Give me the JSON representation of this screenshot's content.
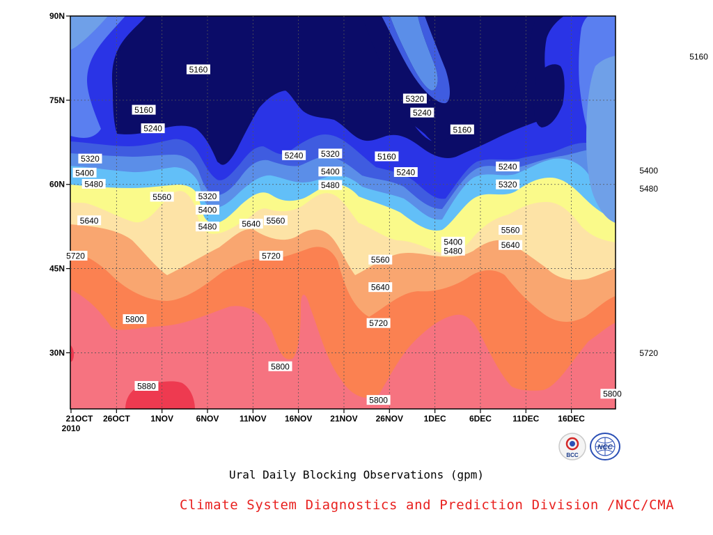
{
  "chart_data": {
    "type": "filled-contour",
    "title": "Ural Daily Blocking Observations (gpm)",
    "x_ticks": [
      "21OCT\n2010",
      "26OCT",
      "1NOV",
      "6NOV",
      "11NOV",
      "16NOV",
      "21NOV",
      "26NOV",
      "1DEC",
      "6DEC",
      "11DEC",
      "16DEC"
    ],
    "y_ticks": [
      "90N",
      "75N",
      "60N",
      "45N",
      "30N"
    ],
    "ylim": [
      20,
      90
    ],
    "grid": true,
    "contour_levels": [
      5160,
      5240,
      5320,
      5400,
      5480,
      5560,
      5640,
      5720,
      5800,
      5880
    ],
    "fill_colors": [
      "#6fa0e8",
      "#5a7ff0",
      "#2a34e6",
      "#0b0c68",
      "#3f5ce0",
      "#5b8ee8",
      "#62bff8",
      "#fafa8a",
      "#fde3a6",
      "#f9a670",
      "#fb8151",
      "#f67380",
      "#ee3a50"
    ],
    "band_labels": [
      "5160",
      "5240",
      "5320",
      "5400",
      "5480",
      "5560",
      "5640",
      "5720",
      "5800",
      "5880"
    ],
    "labels": [
      {
        "text": "5160",
        "x": 14,
        "y": 80.5
      },
      {
        "text": "5160",
        "x": 8,
        "y": 73.3
      },
      {
        "text": "5160",
        "x": 69,
        "y": 82.8
      },
      {
        "text": "5160",
        "x": 34.7,
        "y": 65
      },
      {
        "text": "5160",
        "x": 43,
        "y": 69.8
      },
      {
        "text": "5240",
        "x": 9,
        "y": 70
      },
      {
        "text": "5240",
        "x": 24.5,
        "y": 65.2
      },
      {
        "text": "5240",
        "x": 38.6,
        "y": 72.8
      },
      {
        "text": "5240",
        "x": 36.8,
        "y": 62.2
      },
      {
        "text": "5240",
        "x": 48,
        "y": 63.2
      },
      {
        "text": "5320",
        "x": 2.1,
        "y": 64.6
      },
      {
        "text": "5320",
        "x": 28.5,
        "y": 65.5
      },
      {
        "text": "5320",
        "x": 15,
        "y": 57.9
      },
      {
        "text": "5320",
        "x": 37.8,
        "y": 75.3
      },
      {
        "text": "5320",
        "x": 48,
        "y": 60
      },
      {
        "text": "5400",
        "x": 1.5,
        "y": 62.1
      },
      {
        "text": "5400",
        "x": 28.5,
        "y": 62.3
      },
      {
        "text": "5400",
        "x": 15,
        "y": 55.5
      },
      {
        "text": "5400",
        "x": 42,
        "y": 49.8
      },
      {
        "text": "5400",
        "x": 63.5,
        "y": 62.5
      },
      {
        "text": "5480",
        "x": 2.5,
        "y": 60.1
      },
      {
        "text": "5480",
        "x": 28.5,
        "y": 59.9
      },
      {
        "text": "5480",
        "x": 15,
        "y": 52.5
      },
      {
        "text": "5480",
        "x": 42,
        "y": 48.2
      },
      {
        "text": "5480",
        "x": 63.5,
        "y": 59.3
      },
      {
        "text": "5560",
        "x": 10,
        "y": 57.8
      },
      {
        "text": "5560",
        "x": 22.5,
        "y": 53.6
      },
      {
        "text": "5560",
        "x": 34,
        "y": 46.6
      },
      {
        "text": "5560",
        "x": 48.3,
        "y": 51.9
      },
      {
        "text": "5640",
        "x": 2,
        "y": 53.6
      },
      {
        "text": "5640",
        "x": 19.8,
        "y": 53
      },
      {
        "text": "5640",
        "x": 34,
        "y": 41.7
      },
      {
        "text": "5640",
        "x": 48.3,
        "y": 49.2
      },
      {
        "text": "5720",
        "x": 0.5,
        "y": 47.3
      },
      {
        "text": "5720",
        "x": 22,
        "y": 47.3
      },
      {
        "text": "5720",
        "x": 33.8,
        "y": 35.3
      },
      {
        "text": "5720",
        "x": 63.5,
        "y": 30
      },
      {
        "text": "5800",
        "x": 7,
        "y": 36
      },
      {
        "text": "5800",
        "x": 23,
        "y": 27.6
      },
      {
        "text": "5800",
        "x": 33.8,
        "y": 21.6
      },
      {
        "text": "5800",
        "x": 59.5,
        "y": 22.7
      },
      {
        "text": "5880",
        "x": 8.3,
        "y": 24.1
      }
    ]
  },
  "caption_title": "Ural Daily Blocking Observations (gpm)",
  "caption_org": "Climate System Diagnostics and Prediction Division /NCC/CMA",
  "logos": [
    {
      "icon": "bcc-logo-icon",
      "text": "BCC"
    },
    {
      "icon": "ncc-logo-icon",
      "text": "NCC"
    }
  ]
}
